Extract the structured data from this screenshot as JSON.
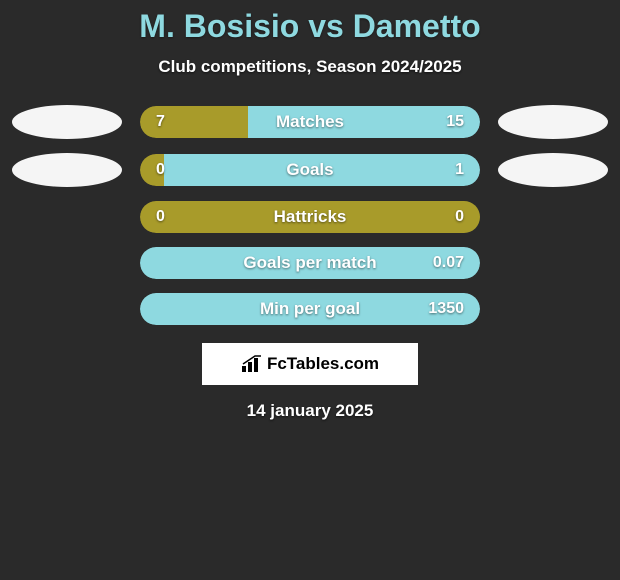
{
  "title": "M. Bosisio vs Dametto",
  "subtitle": "Club competitions, Season 2024/2025",
  "colors": {
    "left": "#a89b2a",
    "right": "#8ed9e0",
    "background": "#2a2a2a",
    "ellipse": "#f5f5f5"
  },
  "rows": [
    {
      "label": "Matches",
      "left": "7",
      "right": "15",
      "left_pct": 31.8,
      "show_ellipses": true
    },
    {
      "label": "Goals",
      "left": "0",
      "right": "1",
      "left_pct": 7,
      "show_ellipses": true
    },
    {
      "label": "Hattricks",
      "left": "0",
      "right": "0",
      "left_pct": 100,
      "show_ellipses": false
    },
    {
      "label": "Goals per match",
      "left": "",
      "right": "0.07",
      "left_pct": 0,
      "show_ellipses": false
    },
    {
      "label": "Min per goal",
      "left": "",
      "right": "1350",
      "left_pct": 0,
      "show_ellipses": false
    }
  ],
  "logo": "FcTables.com",
  "date": "14 january 2025"
}
